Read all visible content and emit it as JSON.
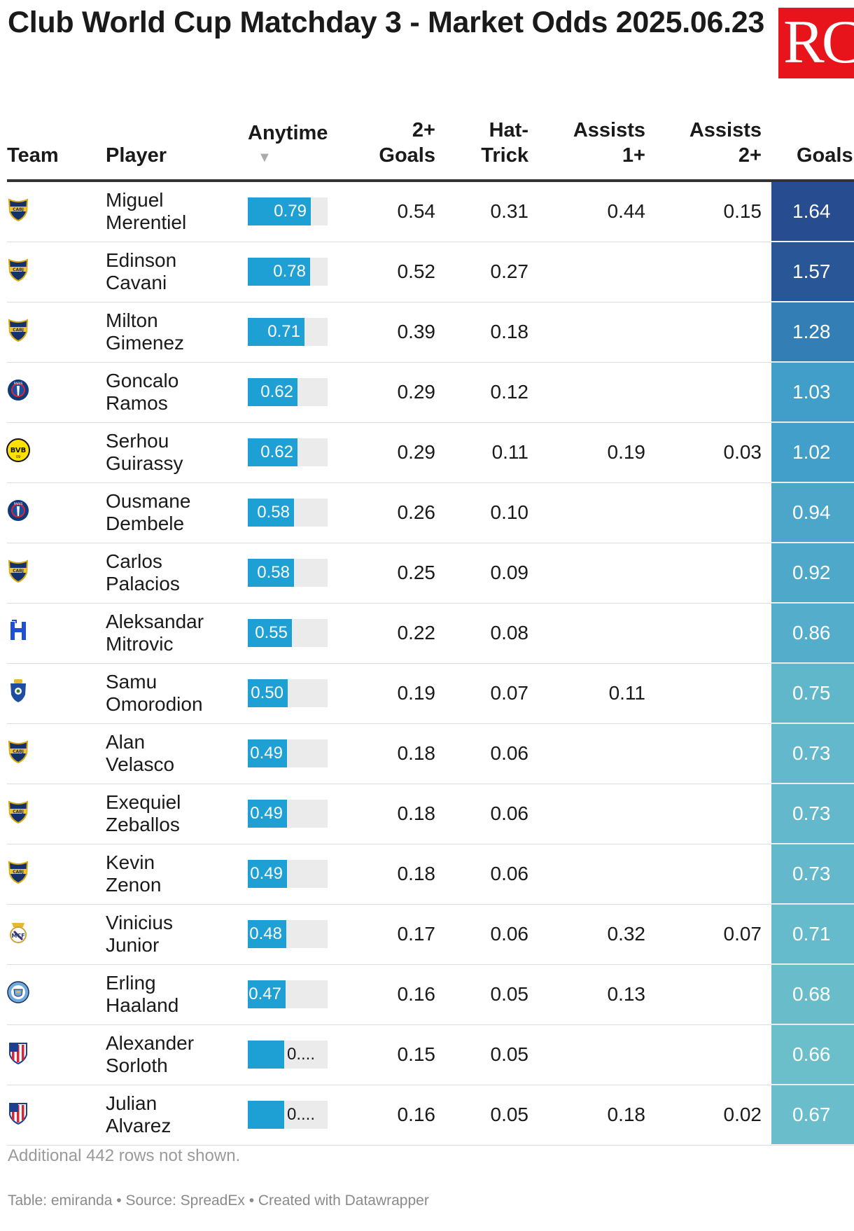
{
  "title": "Club World Cup Matchday 3 - Market Odds 2025.06.23",
  "logo_text": "RC",
  "columns": {
    "team": "Team",
    "player": "Player",
    "anytime": "Anytime",
    "sort_indicator": "▼",
    "goals2": "2+\nGoals",
    "hattrick": "Hat-\nTrick",
    "assists1": "Assists\n1+",
    "assists2": "Assists\n2+",
    "goals": "Goals"
  },
  "colors": {
    "bar_fill": "#1ea0d4",
    "bar_track": "#ebebeb",
    "heat_high": "#274c8f",
    "heat_mid": "#3998c8",
    "heat_low": "#6bbfcb",
    "brand_red": "#e8141c"
  },
  "chart_data": {
    "type": "table",
    "title": "Club World Cup Matchday 3 - Market Odds 2025.06.23",
    "anytime_scale": [
      0,
      1
    ],
    "rows": [
      {
        "team_icon": "boca-juniors-crest-icon",
        "player": "Miguel\nMerentiel",
        "anytime": 0.79,
        "anytime_label": "0.79",
        "goals2": "0.54",
        "hattrick": "0.31",
        "assists1": "0.44",
        "assists2": "0.15",
        "goals": 1.64,
        "goals_label": "1.64"
      },
      {
        "team_icon": "boca-juniors-crest-icon",
        "player": "Edinson\nCavani",
        "anytime": 0.78,
        "anytime_label": "0.78",
        "goals2": "0.52",
        "hattrick": "0.27",
        "assists1": "",
        "assists2": "",
        "goals": 1.57,
        "goals_label": "1.57"
      },
      {
        "team_icon": "boca-juniors-crest-icon",
        "player": "Milton\nGimenez",
        "anytime": 0.71,
        "anytime_label": "0.71",
        "goals2": "0.39",
        "hattrick": "0.18",
        "assists1": "",
        "assists2": "",
        "goals": 1.28,
        "goals_label": "1.28"
      },
      {
        "team_icon": "psg-crest-icon",
        "player": "Goncalo\nRamos",
        "anytime": 0.62,
        "anytime_label": "0.62",
        "goals2": "0.29",
        "hattrick": "0.12",
        "assists1": "",
        "assists2": "",
        "goals": 1.03,
        "goals_label": "1.03"
      },
      {
        "team_icon": "dortmund-crest-icon",
        "player": "Serhou\nGuirassy",
        "anytime": 0.62,
        "anytime_label": "0.62",
        "goals2": "0.29",
        "hattrick": "0.11",
        "assists1": "0.19",
        "assists2": "0.03",
        "goals": 1.02,
        "goals_label": "1.02"
      },
      {
        "team_icon": "psg-crest-icon",
        "player": "Ousmane\nDembele",
        "anytime": 0.58,
        "anytime_label": "0.58",
        "goals2": "0.26",
        "hattrick": "0.10",
        "assists1": "",
        "assists2": "",
        "goals": 0.94,
        "goals_label": "0.94"
      },
      {
        "team_icon": "boca-juniors-crest-icon",
        "player": "Carlos\nPalacios",
        "anytime": 0.58,
        "anytime_label": "0.58",
        "goals2": "0.25",
        "hattrick": "0.09",
        "assists1": "",
        "assists2": "",
        "goals": 0.92,
        "goals_label": "0.92"
      },
      {
        "team_icon": "al-hilal-crest-icon",
        "player": "Aleksandar\nMitrovic",
        "anytime": 0.55,
        "anytime_label": "0.55",
        "goals2": "0.22",
        "hattrick": "0.08",
        "assists1": "",
        "assists2": "",
        "goals": 0.86,
        "goals_label": "0.86"
      },
      {
        "team_icon": "porto-crest-icon",
        "player": "Samu\nOmorodion",
        "anytime": 0.5,
        "anytime_label": "0.50",
        "goals2": "0.19",
        "hattrick": "0.07",
        "assists1": "0.11",
        "assists2": "",
        "goals": 0.75,
        "goals_label": "0.75"
      },
      {
        "team_icon": "boca-juniors-crest-icon",
        "player": "Alan\nVelasco",
        "anytime": 0.49,
        "anytime_label": "0.49",
        "goals2": "0.18",
        "hattrick": "0.06",
        "assists1": "",
        "assists2": "",
        "goals": 0.73,
        "goals_label": "0.73"
      },
      {
        "team_icon": "boca-juniors-crest-icon",
        "player": "Exequiel\nZeballos",
        "anytime": 0.49,
        "anytime_label": "0.49",
        "goals2": "0.18",
        "hattrick": "0.06",
        "assists1": "",
        "assists2": "",
        "goals": 0.73,
        "goals_label": "0.73"
      },
      {
        "team_icon": "boca-juniors-crest-icon",
        "player": "Kevin\nZenon",
        "anytime": 0.49,
        "anytime_label": "0.49",
        "goals2": "0.18",
        "hattrick": "0.06",
        "assists1": "",
        "assists2": "",
        "goals": 0.73,
        "goals_label": "0.73"
      },
      {
        "team_icon": "real-madrid-crest-icon",
        "player": "Vinicius\nJunior",
        "anytime": 0.48,
        "anytime_label": "0.48",
        "goals2": "0.17",
        "hattrick": "0.06",
        "assists1": "0.32",
        "assists2": "0.07",
        "goals": 0.71,
        "goals_label": "0.71"
      },
      {
        "team_icon": "man-city-crest-icon",
        "player": "Erling\nHaaland",
        "anytime": 0.47,
        "anytime_label": "0.47",
        "goals2": "0.16",
        "hattrick": "0.05",
        "assists1": "0.13",
        "assists2": "",
        "goals": 0.68,
        "goals_label": "0.68"
      },
      {
        "team_icon": "atletico-madrid-crest-icon",
        "player": "Alexander\nSorloth",
        "anytime": 0.46,
        "anytime_label": "0....",
        "goals2": "0.15",
        "hattrick": "0.05",
        "assists1": "",
        "assists2": "",
        "goals": 0.66,
        "goals_label": "0.66"
      },
      {
        "team_icon": "atletico-madrid-crest-icon",
        "player": "Julian\nAlvarez",
        "anytime": 0.46,
        "anytime_label": "0....",
        "goals2": "0.16",
        "hattrick": "0.05",
        "assists1": "0.18",
        "assists2": "0.02",
        "goals": 0.67,
        "goals_label": "0.67"
      }
    ]
  },
  "note": "Additional 442 rows not shown.",
  "footer": "Table: emiranda • Source: SpreadEx • Created with Datawrapper"
}
